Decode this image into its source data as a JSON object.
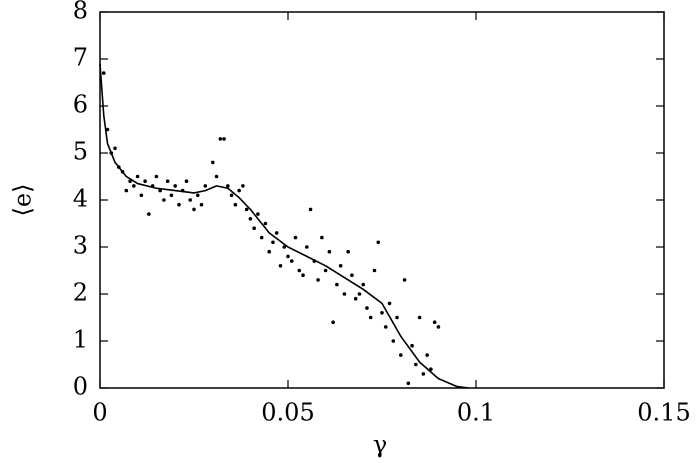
{
  "chart_data": {
    "type": "scatter",
    "x_label": "γ",
    "y_label": "⟨e⟩",
    "xlim": [
      0,
      0.15
    ],
    "xticks": [
      0,
      0.05,
      0.1,
      0.15
    ],
    "ylim": [
      0,
      8
    ],
    "yticks": [
      0,
      1,
      2,
      3,
      4,
      5,
      6,
      7,
      8
    ],
    "grid": false,
    "series": [
      {
        "style": "points",
        "color": "#000000",
        "x": [
          0.001,
          0.002,
          0.003,
          0.004,
          0.005,
          0.006,
          0.007,
          0.008,
          0.009,
          0.01,
          0.011,
          0.012,
          0.013,
          0.014,
          0.015,
          0.016,
          0.017,
          0.018,
          0.019,
          0.02,
          0.021,
          0.022,
          0.023,
          0.024,
          0.025,
          0.026,
          0.027,
          0.028,
          0.03,
          0.031,
          0.032,
          0.033,
          0.034,
          0.035,
          0.036,
          0.037,
          0.038,
          0.039,
          0.04,
          0.041,
          0.042,
          0.043,
          0.044,
          0.045,
          0.046,
          0.047,
          0.048,
          0.049,
          0.05,
          0.051,
          0.052,
          0.053,
          0.054,
          0.055,
          0.056,
          0.057,
          0.058,
          0.059,
          0.06,
          0.061,
          0.062,
          0.063,
          0.064,
          0.065,
          0.066,
          0.067,
          0.068,
          0.069,
          0.07,
          0.071,
          0.072,
          0.073,
          0.074,
          0.075,
          0.076,
          0.077,
          0.078,
          0.079,
          0.08,
          0.081,
          0.082,
          0.083,
          0.084,
          0.085,
          0.086,
          0.087,
          0.088,
          0.089,
          0.09
        ],
        "values": [
          6.7,
          5.5,
          5.0,
          5.1,
          4.7,
          4.6,
          4.2,
          4.4,
          4.3,
          4.5,
          4.1,
          4.4,
          3.7,
          4.3,
          4.5,
          4.2,
          4.0,
          4.4,
          4.1,
          4.3,
          3.9,
          4.2,
          4.4,
          4.0,
          3.8,
          4.1,
          3.9,
          4.3,
          4.8,
          4.5,
          5.3,
          5.3,
          4.3,
          4.1,
          3.9,
          4.2,
          4.3,
          3.8,
          3.6,
          3.4,
          3.7,
          3.2,
          3.5,
          2.9,
          3.1,
          3.3,
          2.6,
          3.0,
          2.8,
          2.7,
          3.2,
          2.5,
          2.4,
          3.0,
          3.8,
          2.7,
          2.3,
          3.2,
          2.5,
          2.9,
          1.4,
          2.2,
          2.6,
          2.0,
          2.9,
          2.4,
          1.9,
          2.0,
          2.2,
          1.7,
          1.5,
          2.5,
          3.1,
          1.6,
          1.3,
          1.8,
          1.0,
          1.5,
          0.7,
          2.3,
          0.1,
          0.9,
          0.5,
          1.5,
          0.3,
          0.7,
          0.4,
          1.4,
          1.3
        ]
      },
      {
        "style": "line",
        "color": "#000000",
        "x": [
          0,
          0.001,
          0.002,
          0.004,
          0.007,
          0.01,
          0.015,
          0.02,
          0.025,
          0.028,
          0.031,
          0.034,
          0.037,
          0.04,
          0.045,
          0.05,
          0.055,
          0.06,
          0.065,
          0.07,
          0.075,
          0.08,
          0.085,
          0.09,
          0.095,
          0.098
        ],
        "values": [
          6.9,
          5.8,
          5.2,
          4.8,
          4.5,
          4.35,
          4.25,
          4.2,
          4.15,
          4.2,
          4.3,
          4.25,
          4.05,
          3.8,
          3.3,
          3.0,
          2.8,
          2.6,
          2.35,
          2.1,
          1.8,
          1.1,
          0.55,
          0.2,
          0.03,
          0
        ]
      }
    ]
  }
}
